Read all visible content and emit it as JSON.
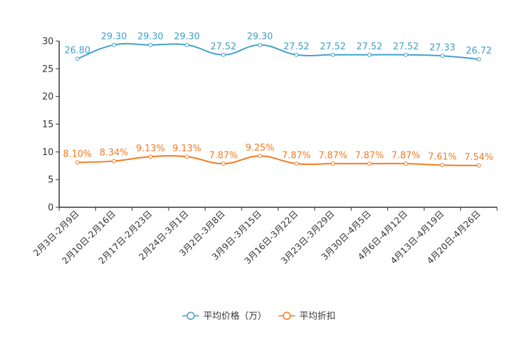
{
  "chart_data": {
    "type": "line",
    "categories": [
      "2月3日-2月9日",
      "2月10日-2月16日",
      "2月17日-2月23日",
      "2月24日-3月1日",
      "3月2日-3月8日",
      "3月9日-3月15日",
      "3月16日-3月22日",
      "3月23日-3月29日",
      "3月30日-4月5日",
      "4月6日-4月12日",
      "4月13日-4月19日",
      "4月20日-4月26日"
    ],
    "ylim": [
      0,
      30
    ],
    "yticks": [
      0,
      5,
      10,
      15,
      20,
      25,
      30
    ],
    "grid": false,
    "legend_position": "bottom-center",
    "series": [
      {
        "name": "平均价格（万）",
        "color": "#3fa0cc",
        "values": [
          26.8,
          29.3,
          29.3,
          29.3,
          27.52,
          29.3,
          27.52,
          27.52,
          27.52,
          27.52,
          27.33,
          26.72
        ],
        "labels": [
          "26.80",
          "29.30",
          "29.30",
          "29.30",
          "27.52",
          "29.30",
          "27.52",
          "27.52",
          "27.52",
          "27.52",
          "27.33",
          "26.72"
        ]
      },
      {
        "name": "平均折扣",
        "color": "#f47920",
        "values": [
          8.1,
          8.34,
          9.13,
          9.13,
          7.87,
          9.25,
          7.87,
          7.87,
          7.87,
          7.87,
          7.61,
          7.54
        ],
        "labels": [
          "8.10%",
          "8.34%",
          "9.13%",
          "9.13%",
          "7.87%",
          "9.25%",
          "7.87%",
          "7.87%",
          "7.87%",
          "7.87%",
          "7.61%",
          "7.54%"
        ]
      }
    ]
  }
}
